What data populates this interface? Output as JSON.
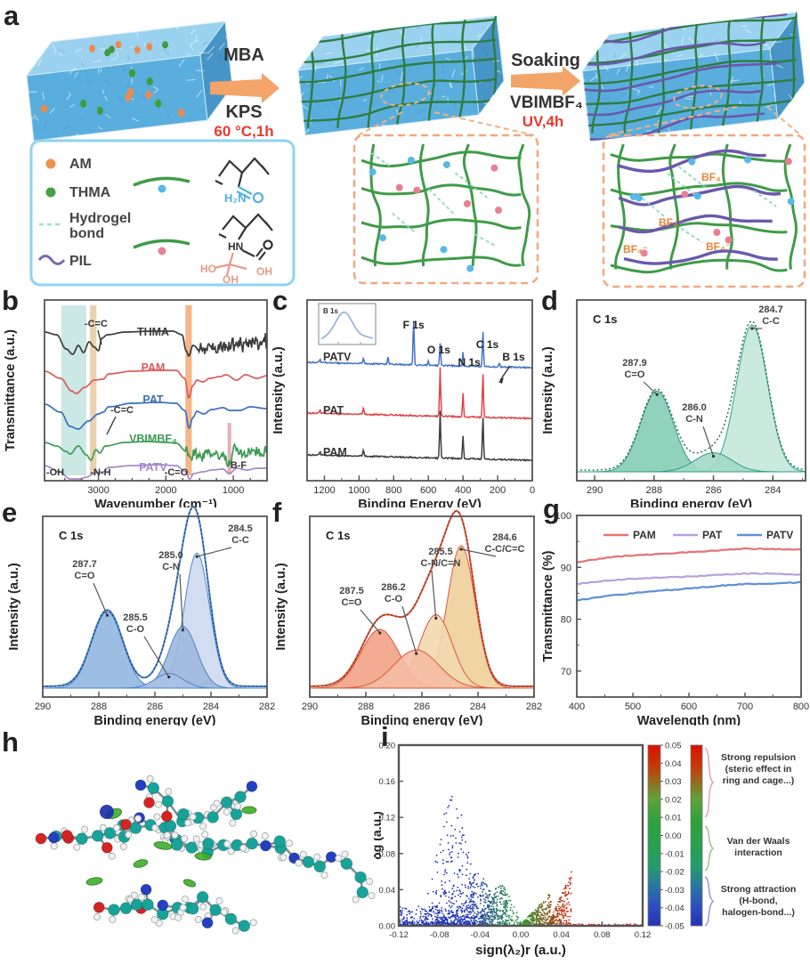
{
  "panel_labels": [
    "a",
    "b",
    "c",
    "d",
    "e",
    "f",
    "g",
    "h",
    "i"
  ],
  "panel_a": {
    "arrow1": {
      "line1": "MBA",
      "line2": "KPS",
      "condition": "60 °C,1h"
    },
    "arrow2": {
      "line1": "Soaking",
      "line2": "VBIMBF₄",
      "condition": "UV,4h"
    },
    "legend": {
      "am": "AM",
      "thma": "THMA",
      "hydrogel_line1": "Hydrogel",
      "hydrogel_line2": "bond",
      "pil": "PIL"
    },
    "chem": {
      "amide": "H₂N",
      "hn": "HN",
      "ho": "HO",
      "oh": "OH"
    },
    "bf4": "BF₄⁻"
  },
  "chart_data": [
    {
      "panel": "b",
      "type": "line",
      "xlabel": "Wavenumber (cm⁻¹)",
      "ylabel": "Transmittance (a.u.)",
      "x_range": [
        3800,
        500
      ],
      "x_ticks": [
        3000,
        2000,
        1000
      ],
      "bands": [
        {
          "from": 3550,
          "to": 3180,
          "color": "#bfe2dd"
        },
        {
          "from": 3125,
          "to": 3030,
          "color": "#e5c79c"
        },
        {
          "from": 1710,
          "to": 1615,
          "color": "#f2a267"
        },
        {
          "from": 1085,
          "to": 1035,
          "color": "#e09ca0",
          "partial": true
        }
      ],
      "curves": [
        {
          "name": "THMA",
          "color": "#3c3c3c",
          "baseline": 45,
          "noise": {
            "from": 1560,
            "to": 500,
            "amp": 10,
            "seed": 11
          },
          "anchors": [
            [
              3800,
              3
            ],
            [
              3620,
              6
            ],
            [
              3480,
              22
            ],
            [
              3380,
              28
            ],
            [
              3300,
              18
            ],
            [
              3220,
              26
            ],
            [
              3140,
              14
            ],
            [
              3060,
              20
            ],
            [
              3000,
              24
            ],
            [
              2950,
              10
            ],
            [
              2870,
              6
            ],
            [
              2600,
              3
            ],
            [
              2200,
              2
            ],
            [
              1900,
              2
            ],
            [
              1760,
              6
            ],
            [
              1700,
              24
            ],
            [
              1660,
              30
            ],
            [
              1600,
              18
            ],
            [
              1500,
              22
            ],
            [
              500,
              14
            ]
          ]
        },
        {
          "name": "PAM",
          "color": "#dd5b5b",
          "baseline": 88,
          "anchors": [
            [
              3800,
              4
            ],
            [
              3560,
              12
            ],
            [
              3400,
              26
            ],
            [
              3330,
              29
            ],
            [
              3200,
              22
            ],
            [
              3060,
              14
            ],
            [
              2930,
              13
            ],
            [
              2850,
              7
            ],
            [
              2500,
              4
            ],
            [
              2100,
              3
            ],
            [
              1850,
              3
            ],
            [
              1720,
              12
            ],
            [
              1660,
              34
            ],
            [
              1600,
              20
            ],
            [
              1540,
              14
            ],
            [
              1450,
              16
            ],
            [
              1350,
              12
            ],
            [
              1190,
              10
            ],
            [
              1110,
              8
            ],
            [
              950,
              14
            ],
            [
              820,
              8
            ],
            [
              650,
              12
            ],
            [
              500,
              9
            ]
          ]
        },
        {
          "name": "PAT",
          "color": "#3a6fc0",
          "baseline": 124,
          "anchors": [
            [
              3800,
              5
            ],
            [
              3560,
              14
            ],
            [
              3420,
              30
            ],
            [
              3300,
              33
            ],
            [
              3150,
              24
            ],
            [
              3000,
              16
            ],
            [
              2930,
              14
            ],
            [
              2850,
              8
            ],
            [
              2500,
              4
            ],
            [
              2100,
              3
            ],
            [
              1850,
              4
            ],
            [
              1720,
              12
            ],
            [
              1655,
              32
            ],
            [
              1600,
              20
            ],
            [
              1540,
              13
            ],
            [
              1440,
              16
            ],
            [
              1320,
              11
            ],
            [
              1150,
              9
            ],
            [
              1050,
              12
            ],
            [
              900,
              12
            ],
            [
              750,
              8
            ],
            [
              500,
              10
            ]
          ]
        },
        {
          "name": "VBIMBF₄",
          "color": "#3f9b55",
          "baseline": 168,
          "noise": {
            "from": 1700,
            "to": 500,
            "amp": 6,
            "seed": 23
          },
          "anchors": [
            [
              3800,
              4
            ],
            [
              3620,
              8
            ],
            [
              3480,
              14
            ],
            [
              3420,
              17
            ],
            [
              3300,
              8
            ],
            [
              3180,
              18
            ],
            [
              3110,
              24
            ],
            [
              3040,
              12
            ],
            [
              2980,
              16
            ],
            [
              2900,
              8
            ],
            [
              2600,
              4
            ],
            [
              2300,
              3
            ],
            [
              1980,
              4
            ],
            [
              1840,
              5
            ],
            [
              1700,
              14
            ],
            [
              1640,
              22
            ],
            [
              1570,
              16
            ],
            [
              1470,
              20
            ],
            [
              1380,
              14
            ],
            [
              1160,
              18
            ],
            [
              1060,
              28
            ],
            [
              980,
              12
            ],
            [
              840,
              18
            ],
            [
              700,
              14
            ],
            [
              560,
              16
            ],
            [
              500,
              12
            ]
          ]
        },
        {
          "name": "PATV",
          "color": "#a488cc",
          "baseline": 195,
          "anchors": [
            [
              3800,
              3
            ],
            [
              3580,
              10
            ],
            [
              3420,
              18
            ],
            [
              3320,
              20
            ],
            [
              3180,
              16
            ],
            [
              3040,
              11
            ],
            [
              2930,
              10
            ],
            [
              2850,
              5
            ],
            [
              2500,
              3
            ],
            [
              2100,
              2
            ],
            [
              1850,
              3
            ],
            [
              1700,
              10
            ],
            [
              1650,
              19
            ],
            [
              1590,
              12
            ],
            [
              1450,
              10
            ],
            [
              1320,
              8
            ],
            [
              1150,
              7
            ],
            [
              1060,
              12
            ],
            [
              950,
              6
            ],
            [
              800,
              8
            ],
            [
              650,
              6
            ],
            [
              500,
              6
            ]
          ]
        }
      ],
      "annotations": [
        "-C=C",
        "-C=C",
        "-OH",
        "-N-H",
        "-C=O",
        "B-F"
      ]
    },
    {
      "panel": "c",
      "type": "line",
      "xlabel": "Binding Energy (eV)",
      "ylabel": "Intensity (a.u.)",
      "x_range": [
        1300,
        0
      ],
      "x_ticks": [
        1200,
        1000,
        800,
        600,
        400,
        200,
        0
      ],
      "peak_labels": [
        "F 1s",
        "O 1s",
        "N 1s",
        "C 1s",
        "B 1s"
      ],
      "inset_label": "B 1s",
      "curves": [
        {
          "name": "PATV",
          "color": "#4473c5",
          "baseline": 88,
          "slope": 6,
          "peaks": [
            [
              1225,
              4
            ],
            [
              975,
              6
            ],
            [
              833,
              9
            ],
            [
              685,
              52
            ],
            [
              600,
              4
            ],
            [
              532,
              25
            ],
            [
              400,
              15
            ],
            [
              285,
              40
            ],
            [
              190,
              4
            ]
          ]
        },
        {
          "name": "PAT",
          "color": "#e04343",
          "baseline": 145,
          "slope": 6,
          "peaks": [
            [
              1225,
              4
            ],
            [
              975,
              7
            ],
            [
              532,
              55
            ],
            [
              400,
              26
            ],
            [
              285,
              50
            ]
          ]
        },
        {
          "name": "PAM",
          "color": "#3d3d3d",
          "baseline": 192,
          "slope": 6,
          "peaks": [
            [
              1225,
              4
            ],
            [
              975,
              7
            ],
            [
              532,
              53
            ],
            [
              400,
              25
            ],
            [
              285,
              48
            ]
          ]
        }
      ]
    },
    {
      "panel": "d",
      "type": "xps_fit",
      "element_label": "C 1s",
      "xlabel": "Binding energy (eV)",
      "ylabel": "Intensity (a.u.)",
      "x_range": [
        290.6,
        282.9
      ],
      "x_ticks": [
        290,
        288,
        286,
        284
      ],
      "line_color": "#2f9e85",
      "dot_color": "#2c6f5e",
      "components": [
        {
          "be": 287.9,
          "bond": "C=O",
          "height": 0.55,
          "sigma": 0.55,
          "fill": "#84cdb4"
        },
        {
          "be": 286.0,
          "bond": "C-N",
          "height": 0.13,
          "sigma": 0.62,
          "fill": "#a3d9c6"
        },
        {
          "be": 284.7,
          "bond": "C-C",
          "height": 1.0,
          "sigma": 0.52,
          "fill": "#c4e8da"
        }
      ]
    },
    {
      "panel": "e",
      "type": "xps_fit",
      "element_label": "C 1s",
      "xlabel": "Binding energy (eV)",
      "ylabel": "Intensity (a.u.)",
      "x_range": [
        290,
        282
      ],
      "x_ticks": [
        290,
        288,
        286,
        284,
        282
      ],
      "line_color": "#4a86c8",
      "dot_color": "#2a4a7f",
      "components": [
        {
          "be": 287.7,
          "bond": "C=O",
          "height": 0.52,
          "sigma": 0.55,
          "fill": "#92b7e0"
        },
        {
          "be": 285.5,
          "bond": "C-O",
          "height": 0.1,
          "sigma": 0.5,
          "fill": "#a9c2e6"
        },
        {
          "be": 285.0,
          "bond": "C-N",
          "height": 0.42,
          "sigma": 0.5,
          "fill": "#9db8dd"
        },
        {
          "be": 284.5,
          "bond": "C-C",
          "height": 0.92,
          "sigma": 0.45,
          "fill": "#cdd9f0"
        }
      ]
    },
    {
      "panel": "f",
      "type": "xps_fit",
      "element_label": "C 1s",
      "xlabel": "Binding energy (eV)",
      "ylabel": "Intensity (a.u.)",
      "x_range": [
        290,
        282
      ],
      "x_ticks": [
        290,
        288,
        286,
        284,
        282
      ],
      "line_color": "#d9583b",
      "dot_color": "#8f3520",
      "components": [
        {
          "be": 287.5,
          "bond": "C=O",
          "height": 0.4,
          "sigma": 0.68,
          "fill": "#f2a285"
        },
        {
          "be": 286.2,
          "bond": "C-O",
          "height": 0.26,
          "sigma": 0.8,
          "fill": "#f5bda4"
        },
        {
          "be": 285.5,
          "bond": "C-N/C=N",
          "height": 0.5,
          "sigma": 0.58,
          "fill": "#f1d9ae"
        },
        {
          "be": 284.6,
          "bond": "C-C/C=C",
          "height": 0.97,
          "sigma": 0.5,
          "fill": "#eecf9a"
        }
      ]
    },
    {
      "panel": "g",
      "type": "line",
      "xlabel": "Wavelength (nm)",
      "ylabel": "Transmittance (%)",
      "xlim": [
        400,
        800
      ],
      "ylim": [
        65,
        100
      ],
      "x_ticks": [
        400,
        500,
        600,
        700,
        800
      ],
      "y_ticks": [
        70,
        80,
        90,
        100
      ],
      "legend_position": "top",
      "series": [
        {
          "name": "PAM",
          "color": "#e87272",
          "points": [
            [
              400,
              91.0
            ],
            [
              450,
              91.8
            ],
            [
              500,
              92.3
            ],
            [
              550,
              92.6
            ],
            [
              600,
              92.9
            ],
            [
              650,
              93.2
            ],
            [
              700,
              93.6
            ],
            [
              750,
              93.5
            ],
            [
              800,
              93.4
            ]
          ]
        },
        {
          "name": "PAT",
          "color": "#b7a1de",
          "points": [
            [
              400,
              86.8
            ],
            [
              450,
              87.4
            ],
            [
              500,
              87.8
            ],
            [
              550,
              88.0
            ],
            [
              600,
              88.2
            ],
            [
              650,
              88.5
            ],
            [
              700,
              88.8
            ],
            [
              750,
              88.8
            ],
            [
              800,
              88.5
            ]
          ]
        },
        {
          "name": "PATV",
          "color": "#5f8fd8",
          "points": [
            [
              400,
              83.6
            ],
            [
              450,
              84.4
            ],
            [
              500,
              85.0
            ],
            [
              550,
              85.5
            ],
            [
              600,
              85.9
            ],
            [
              650,
              86.4
            ],
            [
              700,
              86.8
            ],
            [
              750,
              86.9
            ],
            [
              800,
              87.1
            ]
          ]
        }
      ]
    },
    {
      "panel": "i",
      "type": "scatter",
      "xlabel": "sign(λ₂)r (a.u.)",
      "ylabel": "δg (a.u.)",
      "xlim": [
        -0.12,
        0.12
      ],
      "ylim": [
        0,
        0.2
      ],
      "x_tick_labels": [
        "-0.12",
        "-0.08",
        "-0.04",
        "0.00",
        "0.04",
        "0.08",
        "0.12"
      ],
      "y_tick_labels": [
        "0.00",
        "0.04",
        "0.08",
        "0.12",
        "0.16",
        "0.20"
      ],
      "colorbar_ticks": [
        "0.05",
        "0.04",
        "0.03",
        "0.02",
        "0.01",
        "0.00",
        "-0.01",
        "-0.02",
        "-0.03",
        "-0.04",
        "-0.05"
      ],
      "regions": [
        {
          "lines": [
            "Strong repulsion",
            "(steric effect in",
            "ring and cage...)"
          ],
          "brace_color": "#e8a8a8"
        },
        {
          "lines": [
            "Van der Waals",
            "interaction"
          ],
          "brace_color": "#9cc98f"
        },
        {
          "lines": [
            "Strong attraction",
            "(H-bond,",
            "halogen-bond...)"
          ],
          "brace_color": "#a49ad6"
        }
      ],
      "clusters": [
        {
          "kind": "base",
          "n": 420,
          "x0": -0.12,
          "x1": -0.03,
          "ymax": 0.022
        },
        {
          "kind": "plume",
          "n": 260,
          "cx": -0.067,
          "sx": 0.013,
          "h": 0.145,
          "w": 0.02,
          "pow": 1.8
        },
        {
          "kind": "plume",
          "n": 200,
          "cx": -0.042,
          "sx": 0.01,
          "h": 0.055,
          "w": 0.018,
          "pow": 1.2
        },
        {
          "kind": "plume",
          "n": 220,
          "cx": -0.02,
          "sx": 0.008,
          "h": 0.042,
          "w": 0.014,
          "pow": 1.1
        },
        {
          "kind": "rise",
          "n": 260,
          "x0": 0.002,
          "x1": 0.03,
          "h0": 0.004,
          "h1": 0.038,
          "pow": 1.1
        },
        {
          "kind": "rise",
          "n": 170,
          "x0": 0.028,
          "x1": 0.05,
          "h0": 0.004,
          "h1": 0.06,
          "pow": 0.9
        },
        {
          "kind": "strip",
          "n": 60,
          "x0": 0.05,
          "x1": 0.12,
          "ymax": 0.002
        },
        {
          "kind": "strip",
          "n": 160,
          "x0": -0.12,
          "x1": 0.05,
          "ymax": 0.004
        }
      ]
    }
  ]
}
